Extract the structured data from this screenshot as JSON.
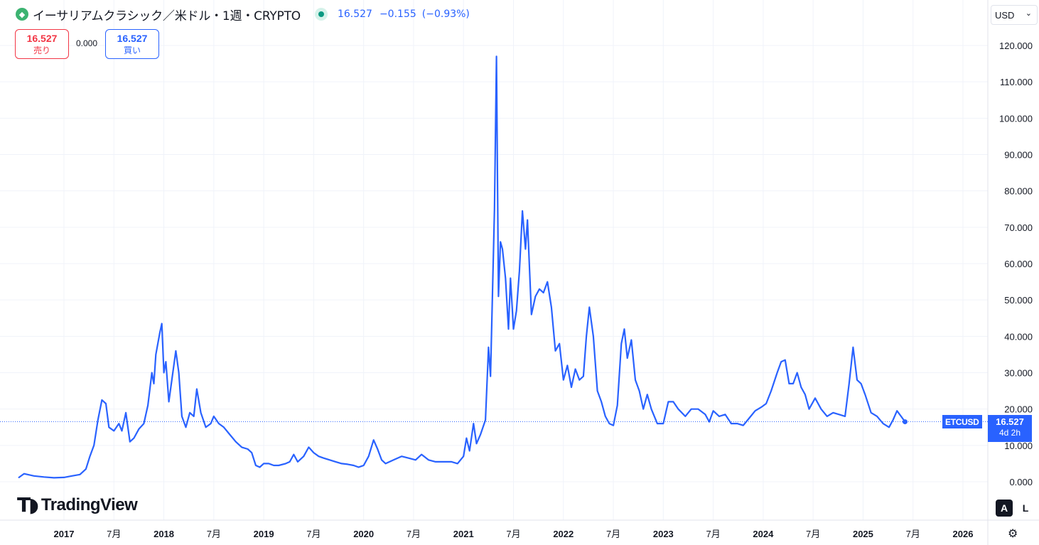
{
  "header": {
    "coin_icon": "ethereum-classic-icon",
    "title": "イーサリアムクラシック／米ドル・1週・CRYPTO",
    "price": "16.527",
    "change": "−0.155",
    "change_pct": "(−0.93%)",
    "colors": {
      "up": "#089981",
      "accent": "#2962ff",
      "sell": "#f23645"
    }
  },
  "trade": {
    "sell_price": "16.527",
    "sell_label": "売り",
    "spread": "0.000",
    "buy_price": "16.527",
    "buy_label": "買い"
  },
  "currency": {
    "selected": "USD"
  },
  "last_price_tag": {
    "symbol": "ETCUSD",
    "price": "16.527",
    "countdown": "4d 2h"
  },
  "branding": {
    "logo_text": "TradingView"
  },
  "scale_buttons": {
    "auto": "A",
    "log": "L"
  },
  "chart_data": {
    "type": "line",
    "series_color": "#2962ff",
    "ylim": [
      0,
      120
    ],
    "y_ticks": [
      "0.000",
      "10.000",
      "20.000",
      "30.000",
      "40.000",
      "50.000",
      "60.000",
      "70.000",
      "80.000",
      "90.000",
      "100.000",
      "110.000",
      "120.000"
    ],
    "x_ticks": [
      {
        "label": "2017",
        "t": 2017.0,
        "year": true
      },
      {
        "label": "7月",
        "t": 2017.5
      },
      {
        "label": "2018",
        "t": 2018.0,
        "year": true
      },
      {
        "label": "7月",
        "t": 2018.5
      },
      {
        "label": "2019",
        "t": 2019.0,
        "year": true
      },
      {
        "label": "7月",
        "t": 2019.5
      },
      {
        "label": "2020",
        "t": 2020.0,
        "year": true
      },
      {
        "label": "7月",
        "t": 2020.5
      },
      {
        "label": "2021",
        "t": 2021.0,
        "year": true
      },
      {
        "label": "7月",
        "t": 2021.5
      },
      {
        "label": "2022",
        "t": 2022.0,
        "year": true
      },
      {
        "label": "7月",
        "t": 2022.5
      },
      {
        "label": "2023",
        "t": 2023.0,
        "year": true
      },
      {
        "label": "7月",
        "t": 2023.5
      },
      {
        "label": "2024",
        "t": 2024.0,
        "year": true
      },
      {
        "label": "7月",
        "t": 2024.5
      },
      {
        "label": "2025",
        "t": 2025.0,
        "year": true
      },
      {
        "label": "7月",
        "t": 2025.5
      },
      {
        "label": "2026",
        "t": 2026.0,
        "year": true
      }
    ],
    "last_value": 16.527,
    "points": [
      [
        2016.55,
        1.2
      ],
      [
        2016.6,
        2.2
      ],
      [
        2016.7,
        1.6
      ],
      [
        2016.8,
        1.3
      ],
      [
        2016.9,
        1.1
      ],
      [
        2017.0,
        1.2
      ],
      [
        2017.08,
        1.6
      ],
      [
        2017.16,
        2.0
      ],
      [
        2017.22,
        3.5
      ],
      [
        2017.26,
        7.0
      ],
      [
        2017.3,
        10.0
      ],
      [
        2017.34,
        17.0
      ],
      [
        2017.38,
        22.5
      ],
      [
        2017.42,
        21.5
      ],
      [
        2017.45,
        15.0
      ],
      [
        2017.5,
        14.0
      ],
      [
        2017.55,
        16.0
      ],
      [
        2017.58,
        14.0
      ],
      [
        2017.62,
        19.0
      ],
      [
        2017.66,
        11.0
      ],
      [
        2017.7,
        12.0
      ],
      [
        2017.75,
        14.5
      ],
      [
        2017.8,
        16.0
      ],
      [
        2017.84,
        21.0
      ],
      [
        2017.88,
        30.0
      ],
      [
        2017.9,
        27.0
      ],
      [
        2017.92,
        35.0
      ],
      [
        2017.96,
        41.0
      ],
      [
        2017.98,
        43.5
      ],
      [
        2018.0,
        30.0
      ],
      [
        2018.02,
        33.0
      ],
      [
        2018.05,
        22.0
      ],
      [
        2018.08,
        28.0
      ],
      [
        2018.12,
        36.0
      ],
      [
        2018.15,
        30.0
      ],
      [
        2018.18,
        18.0
      ],
      [
        2018.22,
        15.0
      ],
      [
        2018.26,
        19.0
      ],
      [
        2018.3,
        18.0
      ],
      [
        2018.33,
        25.5
      ],
      [
        2018.37,
        19.0
      ],
      [
        2018.42,
        15.0
      ],
      [
        2018.47,
        16.0
      ],
      [
        2018.5,
        18.0
      ],
      [
        2018.55,
        16.0
      ],
      [
        2018.6,
        15.0
      ],
      [
        2018.66,
        13.0
      ],
      [
        2018.72,
        11.0
      ],
      [
        2018.78,
        9.5
      ],
      [
        2018.84,
        9.0
      ],
      [
        2018.88,
        8.0
      ],
      [
        2018.92,
        4.5
      ],
      [
        2018.96,
        4.0
      ],
      [
        2019.0,
        5.0
      ],
      [
        2019.05,
        5.0
      ],
      [
        2019.1,
        4.5
      ],
      [
        2019.15,
        4.5
      ],
      [
        2019.22,
        5.0
      ],
      [
        2019.26,
        5.5
      ],
      [
        2019.3,
        7.5
      ],
      [
        2019.34,
        5.5
      ],
      [
        2019.4,
        7.0
      ],
      [
        2019.45,
        9.5
      ],
      [
        2019.5,
        8.0
      ],
      [
        2019.55,
        7.0
      ],
      [
        2019.6,
        6.5
      ],
      [
        2019.66,
        6.0
      ],
      [
        2019.72,
        5.5
      ],
      [
        2019.78,
        5.0
      ],
      [
        2019.84,
        4.8
      ],
      [
        2019.9,
        4.5
      ],
      [
        2019.95,
        4.0
      ],
      [
        2020.0,
        4.5
      ],
      [
        2020.05,
        7.0
      ],
      [
        2020.1,
        11.5
      ],
      [
        2020.14,
        9.0
      ],
      [
        2020.18,
        6.0
      ],
      [
        2020.22,
        5.0
      ],
      [
        2020.3,
        6.0
      ],
      [
        2020.38,
        7.0
      ],
      [
        2020.45,
        6.5
      ],
      [
        2020.52,
        6.0
      ],
      [
        2020.58,
        7.5
      ],
      [
        2020.65,
        6.0
      ],
      [
        2020.72,
        5.5
      ],
      [
        2020.8,
        5.5
      ],
      [
        2020.88,
        5.5
      ],
      [
        2020.94,
        5.0
      ],
      [
        2021.0,
        7.0
      ],
      [
        2021.03,
        12.0
      ],
      [
        2021.06,
        8.5
      ],
      [
        2021.1,
        16.0
      ],
      [
        2021.13,
        10.5
      ],
      [
        2021.17,
        13.0
      ],
      [
        2021.22,
        17.0
      ],
      [
        2021.25,
        37.0
      ],
      [
        2021.27,
        29.0
      ],
      [
        2021.31,
        75.0
      ],
      [
        2021.33,
        117.0
      ],
      [
        2021.35,
        51.0
      ],
      [
        2021.37,
        66.0
      ],
      [
        2021.39,
        64.0
      ],
      [
        2021.42,
        56.0
      ],
      [
        2021.45,
        42.0
      ],
      [
        2021.47,
        56.0
      ],
      [
        2021.5,
        42.0
      ],
      [
        2021.53,
        47.0
      ],
      [
        2021.56,
        58.0
      ],
      [
        2021.59,
        74.5
      ],
      [
        2021.62,
        64.0
      ],
      [
        2021.64,
        72.0
      ],
      [
        2021.68,
        46.0
      ],
      [
        2021.72,
        51.0
      ],
      [
        2021.76,
        53.0
      ],
      [
        2021.8,
        52.0
      ],
      [
        2021.84,
        55.0
      ],
      [
        2021.88,
        48.0
      ],
      [
        2021.92,
        36.0
      ],
      [
        2021.96,
        38.0
      ],
      [
        2022.0,
        28.0
      ],
      [
        2022.04,
        32.0
      ],
      [
        2022.08,
        26.0
      ],
      [
        2022.12,
        31.0
      ],
      [
        2022.16,
        28.0
      ],
      [
        2022.2,
        29.0
      ],
      [
        2022.23,
        40.0
      ],
      [
        2022.26,
        48.0
      ],
      [
        2022.3,
        40.0
      ],
      [
        2022.34,
        25.0
      ],
      [
        2022.38,
        22.0
      ],
      [
        2022.42,
        18.0
      ],
      [
        2022.46,
        16.0
      ],
      [
        2022.5,
        15.5
      ],
      [
        2022.54,
        21.0
      ],
      [
        2022.58,
        38.0
      ],
      [
        2022.61,
        42.0
      ],
      [
        2022.64,
        34.0
      ],
      [
        2022.68,
        39.0
      ],
      [
        2022.72,
        28.0
      ],
      [
        2022.76,
        25.0
      ],
      [
        2022.8,
        20.0
      ],
      [
        2022.84,
        24.0
      ],
      [
        2022.88,
        20.0
      ],
      [
        2022.94,
        16.0
      ],
      [
        2023.0,
        16.0
      ],
      [
        2023.05,
        22.0
      ],
      [
        2023.1,
        22.0
      ],
      [
        2023.15,
        20.0
      ],
      [
        2023.22,
        18.0
      ],
      [
        2023.28,
        20.0
      ],
      [
        2023.35,
        20.0
      ],
      [
        2023.42,
        18.5
      ],
      [
        2023.46,
        16.5
      ],
      [
        2023.5,
        19.5
      ],
      [
        2023.56,
        18.0
      ],
      [
        2023.62,
        18.5
      ],
      [
        2023.68,
        16.0
      ],
      [
        2023.74,
        16.0
      ],
      [
        2023.8,
        15.5
      ],
      [
        2023.86,
        17.5
      ],
      [
        2023.92,
        19.5
      ],
      [
        2023.98,
        20.5
      ],
      [
        2024.03,
        21.5
      ],
      [
        2024.08,
        25.0
      ],
      [
        2024.14,
        30.0
      ],
      [
        2024.18,
        33.0
      ],
      [
        2024.22,
        33.5
      ],
      [
        2024.26,
        27.0
      ],
      [
        2024.3,
        27.0
      ],
      [
        2024.34,
        30.0
      ],
      [
        2024.38,
        26.0
      ],
      [
        2024.42,
        24.0
      ],
      [
        2024.46,
        20.0
      ],
      [
        2024.52,
        23.0
      ],
      [
        2024.58,
        20.0
      ],
      [
        2024.64,
        18.0
      ],
      [
        2024.7,
        19.0
      ],
      [
        2024.76,
        18.5
      ],
      [
        2024.82,
        18.0
      ],
      [
        2024.86,
        27.0
      ],
      [
        2024.9,
        37.0
      ],
      [
        2024.94,
        28.0
      ],
      [
        2024.98,
        27.0
      ],
      [
        2025.02,
        24.0
      ],
      [
        2025.08,
        19.0
      ],
      [
        2025.14,
        18.0
      ],
      [
        2025.2,
        16.0
      ],
      [
        2025.26,
        15.0
      ],
      [
        2025.3,
        17.0
      ],
      [
        2025.34,
        19.5
      ],
      [
        2025.38,
        18.0
      ],
      [
        2025.42,
        16.5
      ]
    ]
  }
}
